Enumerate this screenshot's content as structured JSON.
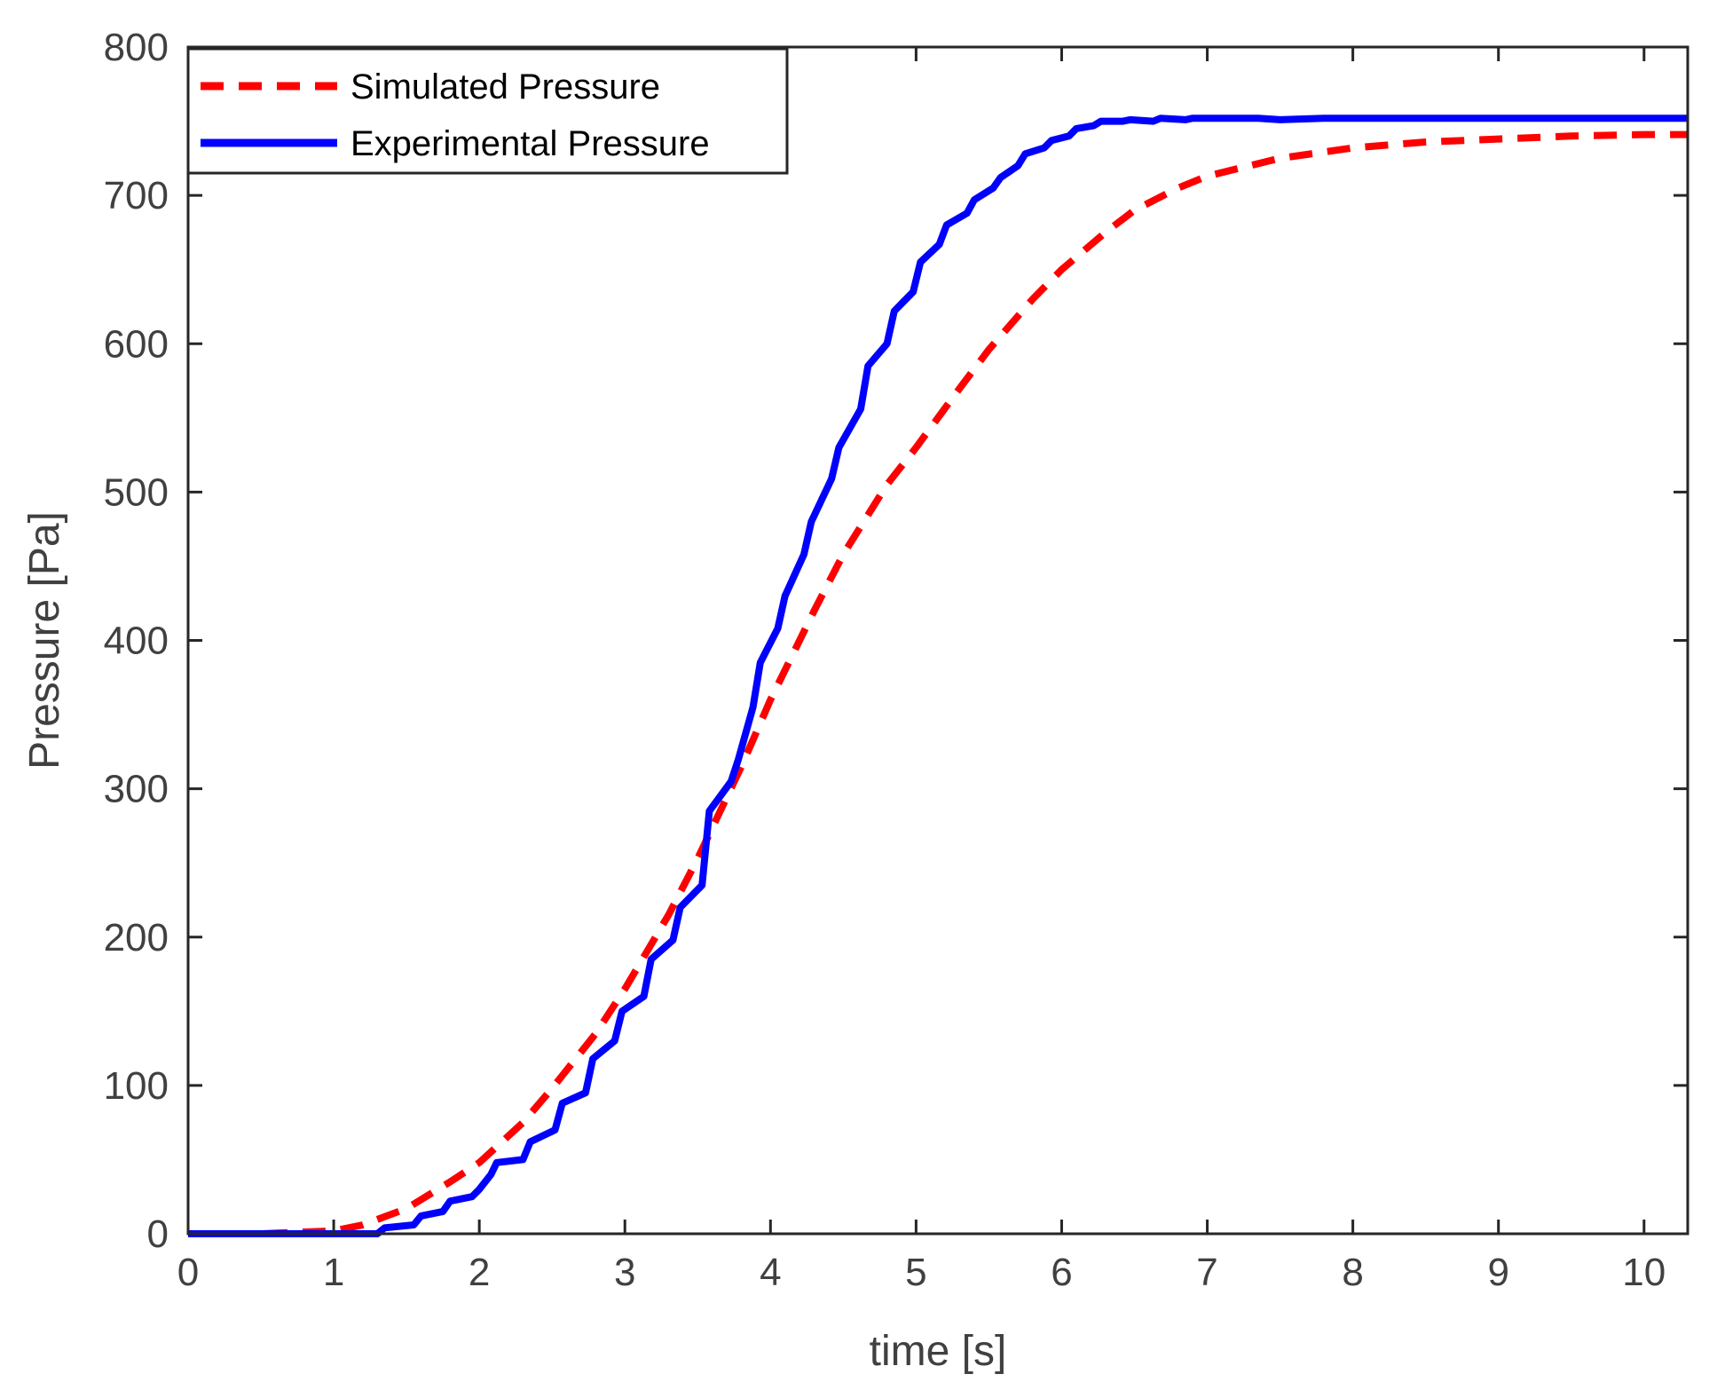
{
  "chart_data": {
    "type": "line",
    "title": "",
    "xlabel": "time [s]",
    "ylabel": "Pressure [Pa]",
    "xlim": [
      0,
      10.3
    ],
    "ylim": [
      0,
      800
    ],
    "xticks": [
      0,
      1,
      2,
      3,
      4,
      5,
      6,
      7,
      8,
      9,
      10
    ],
    "yticks": [
      0,
      100,
      200,
      300,
      400,
      500,
      600,
      700,
      800
    ],
    "grid": false,
    "legend_position": "top-left",
    "series": [
      {
        "name": "Simulated Pressure",
        "style": "dashed",
        "color": "#ff0000",
        "x": [
          0,
          0.5,
          1.0,
          1.2,
          1.5,
          1.8,
          2.0,
          2.3,
          2.5,
          2.8,
          3.0,
          3.3,
          3.5,
          3.8,
          4.0,
          4.3,
          4.5,
          4.8,
          5.0,
          5.3,
          5.5,
          5.8,
          6.0,
          6.3,
          6.5,
          6.8,
          7.0,
          7.5,
          8.0,
          8.5,
          9.0,
          9.5,
          10.0,
          10.3
        ],
        "y": [
          0,
          0,
          2,
          6,
          17,
          35,
          48,
          75,
          98,
          135,
          165,
          215,
          253,
          315,
          360,
          420,
          458,
          505,
          530,
          570,
          596,
          630,
          650,
          675,
          690,
          705,
          713,
          725,
          732,
          736,
          738,
          740,
          741,
          741
        ]
      },
      {
        "name": "Experimental Pressure",
        "style": "solid",
        "color": "#0000ff",
        "x": [
          0,
          1.3,
          1.35,
          1.55,
          1.6,
          1.75,
          1.8,
          1.95,
          2.0,
          2.08,
          2.12,
          2.3,
          2.35,
          2.52,
          2.57,
          2.73,
          2.78,
          2.93,
          2.98,
          3.13,
          3.18,
          3.33,
          3.38,
          3.53,
          3.58,
          3.73,
          3.78,
          3.88,
          3.93,
          4.05,
          4.1,
          4.23,
          4.28,
          4.42,
          4.47,
          4.62,
          4.67,
          4.8,
          4.85,
          4.98,
          5.03,
          5.16,
          5.21,
          5.35,
          5.4,
          5.53,
          5.58,
          5.7,
          5.75,
          5.88,
          5.93,
          6.05,
          6.1,
          6.22,
          6.27,
          6.42,
          6.47,
          6.63,
          6.68,
          6.85,
          6.9,
          7.1,
          7.15,
          7.35,
          7.5,
          7.8,
          8.2,
          8.6,
          9.0,
          9.5,
          10.0,
          10.3
        ],
        "y": [
          0,
          0,
          4,
          6,
          12,
          15,
          22,
          25,
          30,
          40,
          48,
          50,
          62,
          70,
          88,
          95,
          118,
          130,
          150,
          160,
          185,
          198,
          220,
          235,
          285,
          305,
          320,
          355,
          385,
          408,
          430,
          458,
          480,
          509,
          530,
          556,
          585,
          600,
          622,
          635,
          655,
          667,
          680,
          688,
          697,
          705,
          712,
          720,
          728,
          732,
          737,
          740,
          745,
          747,
          750,
          750,
          751,
          750,
          752,
          751,
          752,
          752,
          752,
          752,
          751,
          752,
          752,
          752,
          752,
          752,
          752,
          752
        ]
      }
    ]
  }
}
